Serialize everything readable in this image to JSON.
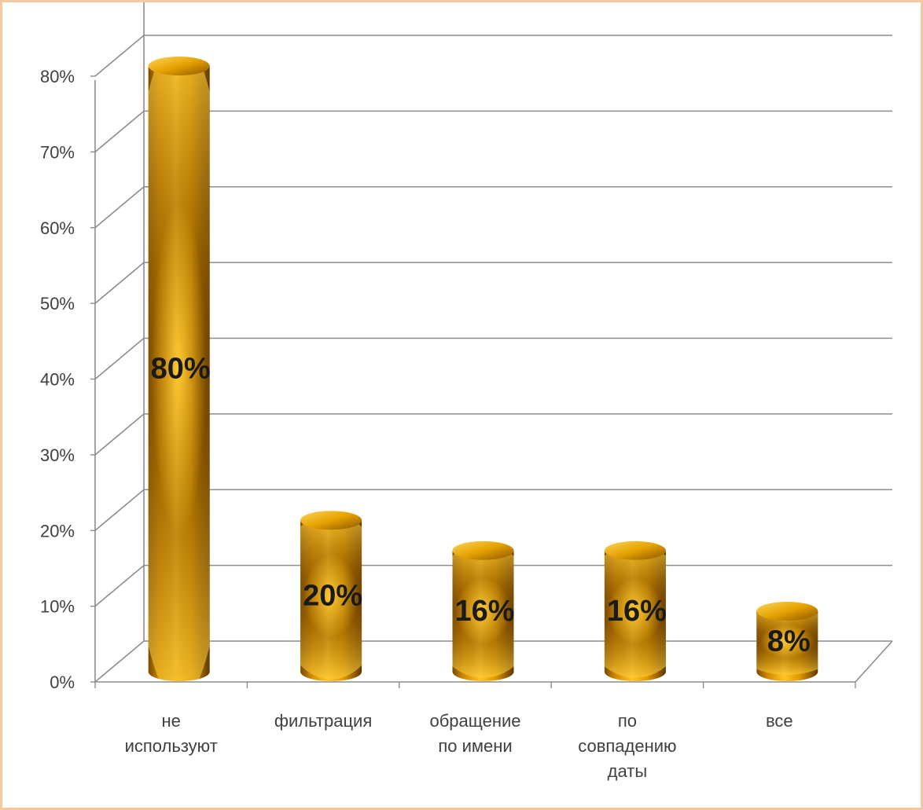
{
  "chart_data": {
    "type": "bar",
    "style": "3d-cylinder",
    "categories": [
      "не\nиспользуют",
      "фильтрация",
      "обращение\nпо имени",
      "по\nсовпадению\nдаты",
      "все"
    ],
    "values": [
      80,
      20,
      16,
      16,
      8
    ],
    "data_labels": [
      "80%",
      "20%",
      "16%",
      "16%",
      "8%"
    ],
    "y_ticks": [
      "0%",
      "10%",
      "20%",
      "30%",
      "40%",
      "50%",
      "60%",
      "70%",
      "80%"
    ],
    "ylim": [
      0,
      80
    ],
    "grid": true,
    "legend": "none",
    "title": "",
    "xlabel": "",
    "ylabel": "",
    "colors": {
      "bar_light": "#ffc21a",
      "bar_mid": "#e59a00",
      "bar_dark": "#6e4100",
      "grid": "#8c8c8c",
      "axis_text": "#404040",
      "label_text": "#1a1a1a",
      "frame_border": "#f2c9a0"
    }
  }
}
